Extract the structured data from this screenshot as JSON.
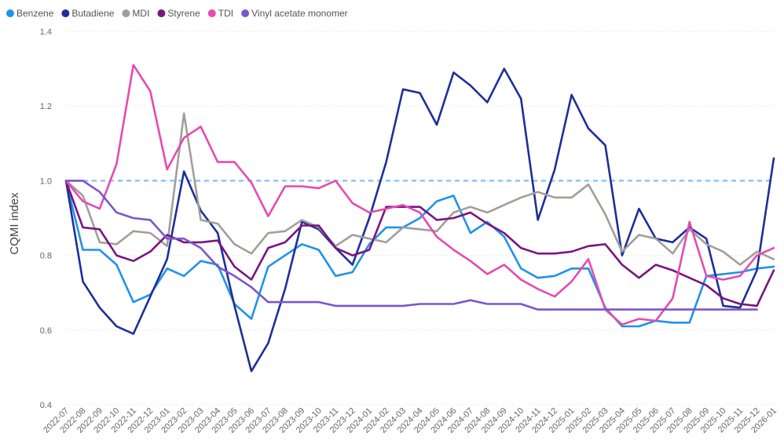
{
  "chart_data": {
    "type": "line",
    "xlabel": "",
    "ylabel": "CQMI index",
    "ylim": [
      0.4,
      1.4
    ],
    "yticks": [
      0.4,
      0.6,
      0.8,
      1.0,
      1.2,
      1.4
    ],
    "ytick_labels": [
      "0.4",
      "0.6",
      "0.8",
      "1.0",
      "1.2",
      "1.4"
    ],
    "grid": true,
    "legend_position": "top-left",
    "reference_line": {
      "value": 1.0,
      "color": "#8ec5f5",
      "style": "dashed"
    },
    "categories": [
      "2022-07",
      "2022-08",
      "2022-09",
      "2022-10",
      "2022-11",
      "2022-12",
      "2023-01",
      "2023-02",
      "2023-03",
      "2023-04",
      "2023-05",
      "2023-06",
      "2023-07",
      "2023-08",
      "2023-09",
      "2023-10",
      "2023-11",
      "2023-12",
      "2024-01",
      "2024-02",
      "2024-03",
      "2024-04",
      "2024-05",
      "2024-06",
      "2024-07",
      "2024-08",
      "2024-09",
      "2024-10",
      "2024-11",
      "2024-12",
      "2025-01",
      "2025-02",
      "2025-03",
      "2025-04",
      "2025-05",
      "2025-06",
      "2025-07",
      "2025-08",
      "2025-09",
      "2025-10",
      "2025-11",
      "2025-12",
      "2026-01"
    ],
    "series": [
      {
        "name": "Benzene",
        "color": "#1f93e8",
        "values": [
          1.0,
          0.815,
          0.815,
          0.775,
          0.675,
          0.695,
          0.765,
          0.745,
          0.785,
          0.775,
          0.67,
          0.63,
          0.77,
          0.8,
          0.83,
          0.815,
          0.745,
          0.755,
          0.83,
          0.875,
          0.875,
          0.9,
          0.945,
          0.96,
          0.86,
          0.89,
          0.85,
          0.765,
          0.74,
          0.745,
          0.765,
          0.765,
          0.66,
          0.61,
          0.61,
          0.625,
          0.62,
          0.62,
          0.745,
          0.75,
          0.755,
          0.765,
          0.77
        ]
      },
      {
        "name": "Butadiene",
        "color": "#1d2f99",
        "values": [
          1.0,
          0.73,
          0.66,
          0.61,
          0.59,
          0.69,
          0.79,
          1.025,
          0.92,
          0.86,
          0.665,
          0.49,
          0.565,
          0.71,
          0.89,
          0.87,
          0.82,
          0.775,
          0.9,
          1.05,
          1.245,
          1.235,
          1.15,
          1.29,
          1.255,
          1.21,
          1.3,
          1.22,
          0.895,
          1.03,
          1.23,
          1.14,
          1.095,
          0.8,
          0.925,
          0.845,
          0.835,
          0.875,
          0.845,
          0.665,
          0.66,
          0.76,
          1.06
        ]
      },
      {
        "name": "MDI",
        "color": "#a39e9a",
        "values": [
          1.0,
          0.96,
          0.835,
          0.83,
          0.865,
          0.86,
          0.825,
          1.18,
          0.895,
          0.885,
          0.83,
          0.805,
          0.86,
          0.865,
          0.895,
          0.875,
          0.825,
          0.855,
          0.845,
          0.835,
          0.875,
          0.87,
          0.865,
          0.915,
          0.93,
          0.915,
          0.935,
          0.955,
          0.97,
          0.955,
          0.955,
          0.99,
          0.91,
          0.81,
          0.855,
          0.845,
          0.805,
          0.87,
          0.83,
          0.81,
          0.775,
          0.81,
          0.79
        ]
      },
      {
        "name": "Styrene",
        "color": "#7a1580",
        "values": [
          1.0,
          0.875,
          0.87,
          0.8,
          0.785,
          0.81,
          0.855,
          0.835,
          0.835,
          0.84,
          0.77,
          0.735,
          0.82,
          0.835,
          0.88,
          0.88,
          0.82,
          0.8,
          0.815,
          0.93,
          0.93,
          0.93,
          0.895,
          0.9,
          0.915,
          0.885,
          0.86,
          0.82,
          0.805,
          0.805,
          0.81,
          0.825,
          0.83,
          0.775,
          0.74,
          0.775,
          0.76,
          0.74,
          0.72,
          0.685,
          0.67,
          0.665,
          0.76
        ]
      },
      {
        "name": "TDI",
        "color": "#e44bb1",
        "values": [
          1.0,
          0.945,
          0.925,
          1.045,
          1.31,
          1.24,
          1.03,
          1.115,
          1.145,
          1.05,
          1.05,
          0.995,
          0.905,
          0.985,
          0.985,
          0.98,
          1.0,
          0.94,
          0.915,
          0.925,
          0.935,
          0.915,
          0.85,
          0.815,
          0.785,
          0.75,
          0.775,
          0.735,
          0.71,
          0.69,
          0.73,
          0.79,
          0.655,
          0.615,
          0.63,
          0.625,
          0.685,
          0.89,
          0.745,
          0.735,
          0.745,
          0.8,
          0.82
        ]
      },
      {
        "name": "Vinyl acetate monomer",
        "color": "#7b56cc",
        "values": [
          1.0,
          1.0,
          0.97,
          0.915,
          0.9,
          0.895,
          0.845,
          0.845,
          0.82,
          0.77,
          0.745,
          0.715,
          0.675,
          0.675,
          0.675,
          0.675,
          0.665,
          0.665,
          0.665,
          0.665,
          0.665,
          0.67,
          0.67,
          0.67,
          0.68,
          0.67,
          0.67,
          0.67,
          0.655,
          0.655,
          0.655,
          0.655,
          0.655,
          0.655,
          0.655,
          0.655,
          0.655,
          0.655,
          0.655,
          0.655,
          0.655,
          0.655,
          null
        ]
      }
    ]
  }
}
